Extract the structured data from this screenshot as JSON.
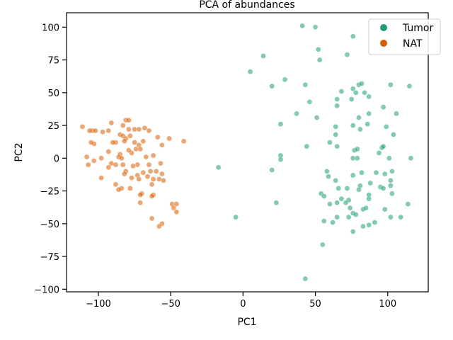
{
  "chart_data": {
    "type": "scatter",
    "title": "PCA of abundances",
    "xlabel": "PC1",
    "ylabel": "PC2",
    "xlim": [
      -122,
      128
    ],
    "ylim": [
      -102,
      111
    ],
    "xticks": [
      -100,
      -50,
      0,
      50,
      100
    ],
    "yticks": [
      -100,
      -75,
      -50,
      -25,
      0,
      25,
      50,
      75,
      100
    ],
    "grid": false,
    "legend_position": "top-right",
    "series": [
      {
        "name": "Tumor",
        "color": "#1b9e77",
        "points": [
          [
            41,
            101
          ],
          [
            50,
            100
          ],
          [
            76,
            93
          ],
          [
            52,
            83
          ],
          [
            14,
            78
          ],
          [
            72,
            79
          ],
          [
            53,
            75
          ],
          [
            5,
            66
          ],
          [
            20,
            55
          ],
          [
            29,
            60
          ],
          [
            43,
            56
          ],
          [
            80,
            56
          ],
          [
            82,
            57
          ],
          [
            102,
            56
          ],
          [
            115,
            55
          ],
          [
            76,
            53
          ],
          [
            78,
            50
          ],
          [
            68,
            51
          ],
          [
            84,
            50
          ],
          [
            75,
            45
          ],
          [
            87,
            47
          ],
          [
            65,
            45
          ],
          [
            46,
            43
          ],
          [
            37,
            34
          ],
          [
            65,
            40
          ],
          [
            97,
            39
          ],
          [
            51,
            31
          ],
          [
            87,
            34
          ],
          [
            106,
            34
          ],
          [
            80,
            31
          ],
          [
            26,
            26
          ],
          [
            64,
            24
          ],
          [
            76,
            25
          ],
          [
            86,
            26
          ],
          [
            81,
            22
          ],
          [
            99,
            24
          ],
          [
            64,
            18
          ],
          [
            104,
            18
          ],
          [
            44,
            9
          ],
          [
            60,
            12
          ],
          [
            65,
            9
          ],
          [
            96,
            8
          ],
          [
            97,
            9
          ],
          [
            77,
            6
          ],
          [
            79,
            7
          ],
          [
            94,
            4
          ],
          [
            26,
            2
          ],
          [
            26,
            -1
          ],
          [
            76,
            0
          ],
          [
            79,
            0
          ],
          [
            101,
            0
          ],
          [
            116,
            0
          ],
          [
            -17,
            -7
          ],
          [
            20,
            -9
          ],
          [
            58,
            -10
          ],
          [
            59,
            -14
          ],
          [
            76,
            -13
          ],
          [
            82,
            -11
          ],
          [
            92,
            -11
          ],
          [
            98,
            -12
          ],
          [
            103,
            -10
          ],
          [
            102,
            -17
          ],
          [
            64,
            -17
          ],
          [
            66,
            -23
          ],
          [
            72,
            -23
          ],
          [
            81,
            -21
          ],
          [
            88,
            -19
          ],
          [
            95,
            -22
          ],
          [
            97,
            -23
          ],
          [
            102,
            -21
          ],
          [
            80,
            -24
          ],
          [
            54,
            -27
          ],
          [
            56,
            -29
          ],
          [
            68,
            -31
          ],
          [
            73,
            -32
          ],
          [
            87,
            -28
          ],
          [
            103,
            -27
          ],
          [
            65,
            -34
          ],
          [
            71,
            -34
          ],
          [
            74,
            -38
          ],
          [
            87,
            -31
          ],
          [
            60,
            -35
          ],
          [
            23,
            -34
          ],
          [
            -5,
            -45
          ],
          [
            56,
            -48
          ],
          [
            62,
            -49
          ],
          [
            65,
            -45
          ],
          [
            73,
            -45
          ],
          [
            76,
            -42
          ],
          [
            78,
            -43
          ],
          [
            83,
            -39
          ],
          [
            85,
            -38
          ],
          [
            98,
            -39
          ],
          [
            114,
            -35
          ],
          [
            102,
            -45
          ],
          [
            109,
            -45
          ],
          [
            76,
            -56
          ],
          [
            83,
            -52
          ],
          [
            87,
            -51
          ],
          [
            91,
            -49
          ],
          [
            55,
            -66
          ],
          [
            43,
            -92
          ]
        ]
      },
      {
        "name": "NAT",
        "color": "#d95f02",
        "points": [
          [
            -111,
            24
          ],
          [
            -104,
            21
          ],
          [
            -106,
            21
          ],
          [
            -102,
            21
          ],
          [
            -97,
            20
          ],
          [
            -93,
            21
          ],
          [
            -91,
            27
          ],
          [
            -83,
            25
          ],
          [
            -81,
            29
          ],
          [
            -79,
            29
          ],
          [
            -79,
            22
          ],
          [
            -75,
            22
          ],
          [
            -72,
            22
          ],
          [
            -68,
            23
          ],
          [
            -65,
            21
          ],
          [
            -85,
            18
          ],
          [
            -83,
            17
          ],
          [
            -78,
            17
          ],
          [
            -81,
            15
          ],
          [
            -82,
            13
          ],
          [
            -88,
            12
          ],
          [
            -90,
            12
          ],
          [
            -103,
            11
          ],
          [
            -105,
            12
          ],
          [
            -75,
            12
          ],
          [
            -72,
            10
          ],
          [
            -69,
            13
          ],
          [
            -59,
            16
          ],
          [
            -51,
            15
          ],
          [
            -41,
            13
          ],
          [
            -56,
            10
          ],
          [
            -93,
            5
          ],
          [
            -85,
            3
          ],
          [
            -77,
            4
          ],
          [
            -79,
            6
          ],
          [
            -74,
            7
          ],
          [
            -71,
            7
          ],
          [
            -108,
            1
          ],
          [
            -103,
            -2
          ],
          [
            -98,
            0
          ],
          [
            -86,
            1
          ],
          [
            -84,
            0
          ],
          [
            -67,
            1
          ],
          [
            -62,
            2
          ],
          [
            -91,
            -4
          ],
          [
            -88,
            -5
          ],
          [
            -83,
            -5
          ],
          [
            -93,
            -7
          ],
          [
            -73,
            -5
          ],
          [
            -76,
            -6
          ],
          [
            -65,
            -5
          ],
          [
            -57,
            -4
          ],
          [
            -107,
            -5
          ],
          [
            -98,
            -15
          ],
          [
            -81,
            -10
          ],
          [
            -82,
            -12
          ],
          [
            -73,
            -13
          ],
          [
            -69,
            -11
          ],
          [
            -64,
            -10
          ],
          [
            -60,
            -10
          ],
          [
            -56,
            -12
          ],
          [
            -77,
            -15
          ],
          [
            -72,
            -16
          ],
          [
            -66,
            -14
          ],
          [
            -62,
            -16
          ],
          [
            -58,
            -16
          ],
          [
            -55,
            -17
          ],
          [
            -88,
            -20
          ],
          [
            -84,
            -23
          ],
          [
            -86,
            -24
          ],
          [
            -78,
            -23
          ],
          [
            -63,
            -20
          ],
          [
            -70,
            -27
          ],
          [
            -71,
            -28
          ],
          [
            -62,
            -28
          ],
          [
            -63,
            -29
          ],
          [
            -71,
            -34
          ],
          [
            -49,
            -35
          ],
          [
            -46,
            -35
          ],
          [
            -48,
            -38
          ],
          [
            -46,
            -41
          ],
          [
            -63,
            -46
          ],
          [
            -56,
            -50
          ],
          [
            -58,
            -52
          ]
        ]
      }
    ]
  }
}
